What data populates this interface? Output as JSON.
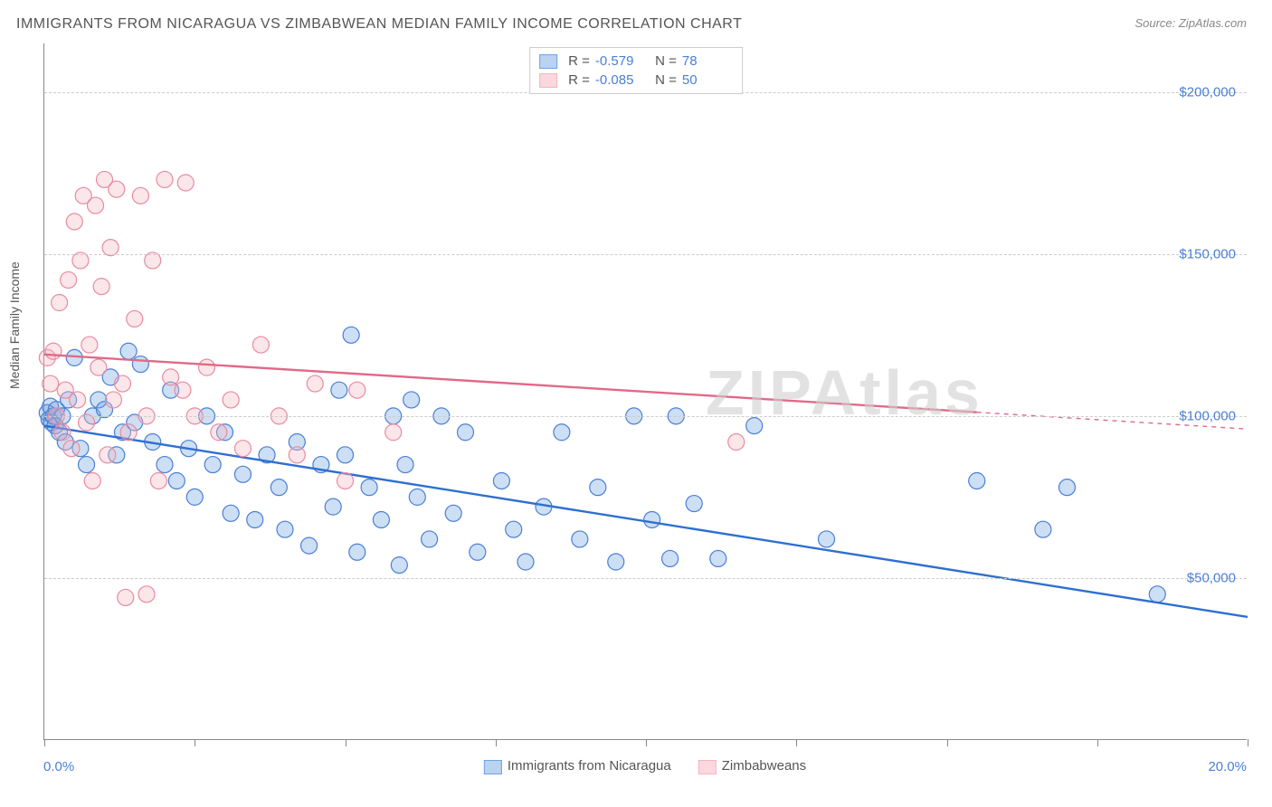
{
  "title": "IMMIGRANTS FROM NICARAGUA VS ZIMBABWEAN MEDIAN FAMILY INCOME CORRELATION CHART",
  "source": "Source: ZipAtlas.com",
  "y_axis_label": "Median Family Income",
  "watermark": "ZIPAtlas",
  "chart": {
    "type": "scatter",
    "background_color": "#ffffff",
    "grid_color": "#cccccc",
    "grid_style": "dashed",
    "axis_color": "#888888",
    "xlim": [
      0,
      20
    ],
    "ylim": [
      0,
      215000
    ],
    "x_unit": "%",
    "y_unit": "$",
    "x_min_label": "0.0%",
    "x_max_label": "20.0%",
    "y_ticks": [
      50000,
      100000,
      150000,
      200000
    ],
    "y_tick_labels": [
      "$50,000",
      "$100,000",
      "$150,000",
      "$200,000"
    ],
    "x_ticks": [
      0,
      2.5,
      5,
      7.5,
      10,
      12.5,
      15,
      17.5,
      20
    ],
    "marker_radius": 9,
    "marker_fill_opacity": 0.35,
    "marker_stroke_width": 1.2,
    "trend_line_width": 2.4,
    "series": [
      {
        "name": "Immigrants from Nicaragua",
        "color": "#6fa3e0",
        "stroke": "#4a7fd6",
        "trend_color": "#2e6fd1",
        "R": "-0.579",
        "N": "78",
        "trend": {
          "x1": 0,
          "y1": 97000,
          "x2": 20,
          "y2": 38000,
          "dash_from": 20
        },
        "points": [
          [
            0.05,
            101000
          ],
          [
            0.08,
            99000
          ],
          [
            0.1,
            103000
          ],
          [
            0.12,
            98000
          ],
          [
            0.15,
            100000
          ],
          [
            0.18,
            97000
          ],
          [
            0.2,
            102000
          ],
          [
            0.25,
            95000
          ],
          [
            0.3,
            100000
          ],
          [
            0.35,
            92000
          ],
          [
            0.4,
            105000
          ],
          [
            0.5,
            118000
          ],
          [
            0.6,
            90000
          ],
          [
            0.7,
            85000
          ],
          [
            0.8,
            100000
          ],
          [
            0.9,
            105000
          ],
          [
            1.0,
            102000
          ],
          [
            1.1,
            112000
          ],
          [
            1.2,
            88000
          ],
          [
            1.3,
            95000
          ],
          [
            1.4,
            120000
          ],
          [
            1.5,
            98000
          ],
          [
            1.6,
            116000
          ],
          [
            1.8,
            92000
          ],
          [
            2.0,
            85000
          ],
          [
            2.1,
            108000
          ],
          [
            2.2,
            80000
          ],
          [
            2.4,
            90000
          ],
          [
            2.5,
            75000
          ],
          [
            2.7,
            100000
          ],
          [
            2.8,
            85000
          ],
          [
            3.0,
            95000
          ],
          [
            3.1,
            70000
          ],
          [
            3.3,
            82000
          ],
          [
            3.5,
            68000
          ],
          [
            3.7,
            88000
          ],
          [
            3.9,
            78000
          ],
          [
            4.0,
            65000
          ],
          [
            4.2,
            92000
          ],
          [
            4.4,
            60000
          ],
          [
            4.6,
            85000
          ],
          [
            4.8,
            72000
          ],
          [
            5.0,
            88000
          ],
          [
            5.1,
            125000
          ],
          [
            5.2,
            58000
          ],
          [
            5.4,
            78000
          ],
          [
            5.6,
            68000
          ],
          [
            5.8,
            100000
          ],
          [
            5.9,
            54000
          ],
          [
            6.0,
            85000
          ],
          [
            6.2,
            75000
          ],
          [
            6.4,
            62000
          ],
          [
            6.6,
            100000
          ],
          [
            6.8,
            70000
          ],
          [
            7.0,
            95000
          ],
          [
            7.2,
            58000
          ],
          [
            7.6,
            80000
          ],
          [
            7.8,
            65000
          ],
          [
            8.0,
            55000
          ],
          [
            8.3,
            72000
          ],
          [
            8.6,
            95000
          ],
          [
            8.9,
            62000
          ],
          [
            9.2,
            78000
          ],
          [
            9.5,
            55000
          ],
          [
            9.8,
            100000
          ],
          [
            10.1,
            68000
          ],
          [
            10.4,
            56000
          ],
          [
            10.5,
            100000
          ],
          [
            10.8,
            73000
          ],
          [
            11.2,
            56000
          ],
          [
            11.8,
            97000
          ],
          [
            13.0,
            62000
          ],
          [
            15.5,
            80000
          ],
          [
            16.6,
            65000
          ],
          [
            17.0,
            78000
          ],
          [
            18.5,
            45000
          ],
          [
            6.1,
            105000
          ],
          [
            4.9,
            108000
          ]
        ]
      },
      {
        "name": "Zimbabweans",
        "color": "#f4b6c2",
        "stroke": "#e98ba0",
        "trend_color": "#e06a88",
        "R": "-0.085",
        "N": "50",
        "trend": {
          "x1": 0,
          "y1": 119000,
          "x2": 20,
          "y2": 96000,
          "dash_from": 15.5
        },
        "points": [
          [
            0.05,
            118000
          ],
          [
            0.1,
            110000
          ],
          [
            0.15,
            120000
          ],
          [
            0.2,
            100000
          ],
          [
            0.25,
            135000
          ],
          [
            0.3,
            95000
          ],
          [
            0.35,
            108000
          ],
          [
            0.4,
            142000
          ],
          [
            0.45,
            90000
          ],
          [
            0.5,
            160000
          ],
          [
            0.55,
            105000
          ],
          [
            0.6,
            148000
          ],
          [
            0.65,
            168000
          ],
          [
            0.7,
            98000
          ],
          [
            0.75,
            122000
          ],
          [
            0.8,
            80000
          ],
          [
            0.85,
            165000
          ],
          [
            0.9,
            115000
          ],
          [
            0.95,
            140000
          ],
          [
            1.0,
            173000
          ],
          [
            1.05,
            88000
          ],
          [
            1.1,
            152000
          ],
          [
            1.15,
            105000
          ],
          [
            1.2,
            170000
          ],
          [
            1.3,
            110000
          ],
          [
            1.4,
            95000
          ],
          [
            1.5,
            130000
          ],
          [
            1.6,
            168000
          ],
          [
            1.7,
            100000
          ],
          [
            1.8,
            148000
          ],
          [
            1.9,
            80000
          ],
          [
            2.0,
            173000
          ],
          [
            2.1,
            112000
          ],
          [
            2.3,
            108000
          ],
          [
            2.5,
            100000
          ],
          [
            2.7,
            115000
          ],
          [
            2.9,
            95000
          ],
          [
            3.1,
            105000
          ],
          [
            3.3,
            90000
          ],
          [
            3.6,
            122000
          ],
          [
            3.9,
            100000
          ],
          [
            4.2,
            88000
          ],
          [
            4.5,
            110000
          ],
          [
            5.0,
            80000
          ],
          [
            5.2,
            108000
          ],
          [
            5.8,
            95000
          ],
          [
            1.35,
            44000
          ],
          [
            2.35,
            172000
          ],
          [
            11.5,
            92000
          ],
          [
            1.7,
            45000
          ]
        ]
      }
    ]
  },
  "legend_bottom": {
    "items": [
      {
        "label": "Immigrants from Nicaragua",
        "fill": "#b9d3f0",
        "stroke": "#6fa3e0"
      },
      {
        "label": "Zimbabweans",
        "fill": "#fbd7de",
        "stroke": "#f4b6c2"
      }
    ]
  },
  "stats_legend": {
    "rows": [
      {
        "fill": "#b9d3f0",
        "stroke": "#6fa3e0",
        "R": "-0.579",
        "N": "78"
      },
      {
        "fill": "#fbd7de",
        "stroke": "#f4b6c2",
        "R": "-0.085",
        "N": "50"
      }
    ]
  }
}
